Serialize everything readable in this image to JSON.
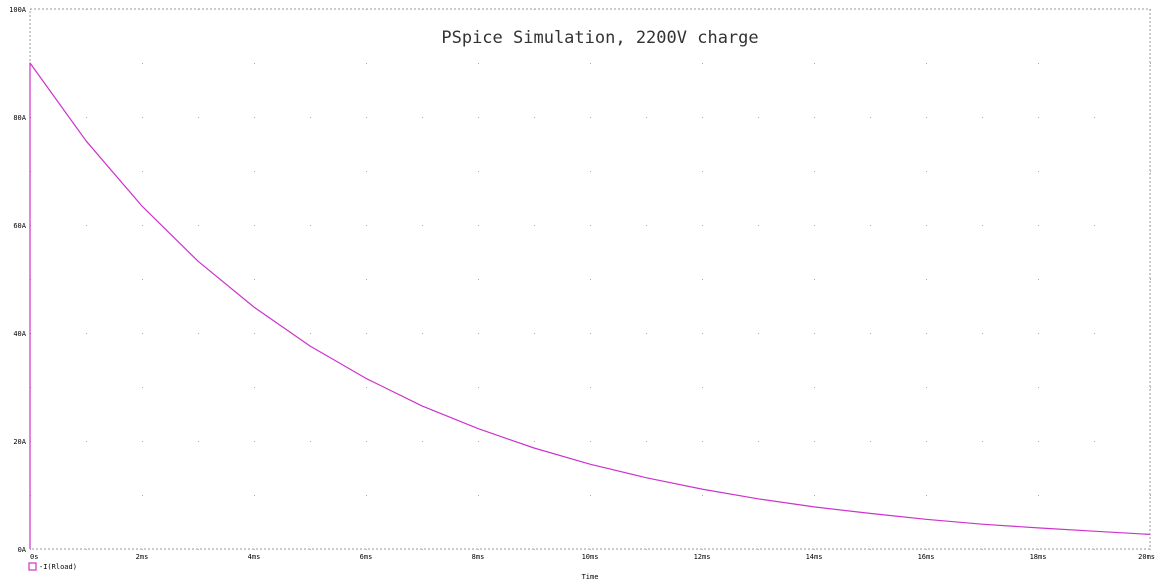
{
  "chart_data": {
    "type": "line",
    "title": "PSpice Simulation, 2200V charge",
    "xlabel": "Time",
    "ylabel": "",
    "xlim": [
      0,
      20
    ],
    "ylim": [
      0,
      100
    ],
    "x_ticks": [
      "0s",
      "2ms",
      "4ms",
      "6ms",
      "8ms",
      "10ms",
      "12ms",
      "14ms",
      "16ms",
      "18ms",
      "20ms"
    ],
    "y_ticks": [
      "0A",
      "20A",
      "40A",
      "60A",
      "80A",
      "100A"
    ],
    "grid": true,
    "legend_position": "bottom-left",
    "series": [
      {
        "name": "-I(Rload)",
        "color": "#cc33cc",
        "x": [
          0,
          0,
          1,
          2,
          3,
          4,
          5,
          6,
          7,
          8,
          9,
          10,
          11,
          12,
          13,
          14,
          15,
          16,
          17,
          18,
          19,
          20
        ],
        "y": [
          0,
          90,
          75.6,
          63.5,
          53.3,
          44.8,
          37.6,
          31.6,
          26.5,
          22.3,
          18.7,
          15.7,
          13.2,
          11.1,
          9.3,
          7.8,
          6.6,
          5.5,
          4.6,
          3.9,
          3.3,
          2.7
        ]
      }
    ]
  }
}
